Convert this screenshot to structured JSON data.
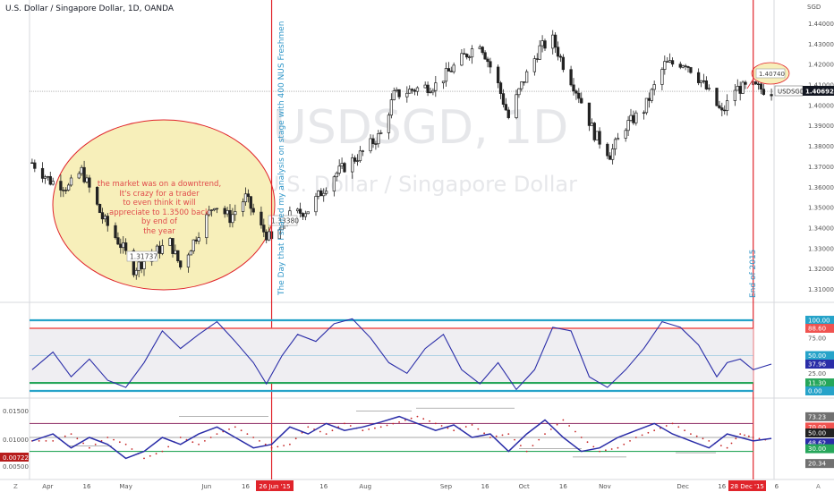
{
  "header": {
    "title": "U.S. Dollar / Singapore Dollar, 1D, OANDA"
  },
  "watermark": {
    "symbol": "USDSGD, 1D",
    "name": "U.S. Dollar / Singapore Dollar"
  },
  "currency_label": "SGD",
  "annotations": {
    "ellipse_text": [
      "the market was on a downtrend,",
      "It's crazy for a trader",
      "to even think it will",
      "appreciate to 1.3500 back",
      "by end of",
      "the year"
    ],
    "vertical_line_1_text": "The Day that I shared my analysis on stage with 400 NUS Freshmen",
    "vertical_line_2_text": "End of 2015",
    "low_label": "1.31737",
    "mid_label": "1.33380",
    "target_label": "1.40740"
  },
  "price_axis": {
    "ticks": [
      "1.44000",
      "1.43000",
      "1.42000",
      "1.41000",
      "1.40000",
      "1.39000",
      "1.38000",
      "1.37000",
      "1.36000",
      "1.35000",
      "1.34000",
      "1.33000",
      "1.32000",
      "1.31000"
    ],
    "symbol_tag": "USDSGD",
    "last_price": "1.40692"
  },
  "osc1_axis": {
    "labels": [
      "100.00",
      "88.60",
      "75.00",
      "50.00",
      "37.96",
      "25.00",
      "11.30",
      "0.00"
    ],
    "colors": [
      "#26a3c9",
      "#f05350",
      null,
      "#26a3c9",
      "#2a2da8",
      null,
      "#26a65a",
      "#26a3c9"
    ]
  },
  "osc2_axis": {
    "left_labels": [
      "0.01500",
      "0.01000",
      "0.00500"
    ],
    "left_badge": "0.00722",
    "right_labels": [
      "73.23",
      "70.00",
      "50.00",
      "48.62",
      "30.00",
      "20.34"
    ],
    "right_colors": [
      "#707070",
      "#f05350",
      "#222222",
      "#2a2da8",
      "#26a65a",
      "#707070"
    ]
  },
  "time_axis": {
    "labels": [
      "Apr",
      "16",
      "May",
      "Jun",
      "16",
      "16",
      "Aug",
      "Sep",
      "16",
      "Oct",
      "16",
      "Nov",
      "Dec",
      "16",
      "6"
    ],
    "badge_1": "26 Jun '15",
    "badge_2": "28 Dec '15",
    "corner_left": "Z",
    "corner_right": "A"
  },
  "colors": {
    "vline": "#e0242b",
    "ellipse_fill": "#f7efba",
    "ellipse_stroke": "#e0242b",
    "candle": "#222222",
    "osc_line": "#2a2da8",
    "band_top": "#26a3c9",
    "band_red": "#f05350",
    "band_green": "#26a65a"
  },
  "chart_data": [
    {
      "type": "candlestick",
      "title": "U.S. Dollar / Singapore Dollar, 1D, OANDA",
      "ylabel": "SGD",
      "ylim": [
        1.305,
        1.445
      ],
      "x_range": [
        "2015-03-25",
        "2016-01-05"
      ],
      "levels": {
        "low": 1.31737,
        "mid": 1.3338,
        "target": 1.4074,
        "last": 1.40692
      },
      "markers": [
        {
          "date": "2015-06-26",
          "label": "26 Jun '15"
        },
        {
          "date": "2015-12-28",
          "label": "28 Dec '15"
        }
      ],
      "close_waypoints": [
        {
          "date": "2015-03-26",
          "close": 1.372
        },
        {
          "date": "2015-04-02",
          "close": 1.363
        },
        {
          "date": "2015-04-09",
          "close": 1.36
        },
        {
          "date": "2015-04-14",
          "close": 1.368
        },
        {
          "date": "2015-04-22",
          "close": 1.345
        },
        {
          "date": "2015-04-30",
          "close": 1.33
        },
        {
          "date": "2015-05-04",
          "close": 1.32
        },
        {
          "date": "2015-05-12",
          "close": 1.328
        },
        {
          "date": "2015-05-18",
          "close": 1.333
        },
        {
          "date": "2015-05-22",
          "close": 1.321
        },
        {
          "date": "2015-05-28",
          "close": 1.336
        },
        {
          "date": "2015-06-04",
          "close": 1.352
        },
        {
          "date": "2015-06-10",
          "close": 1.345
        },
        {
          "date": "2015-06-16",
          "close": 1.355
        },
        {
          "date": "2015-06-22",
          "close": 1.34
        },
        {
          "date": "2015-06-26",
          "close": 1.3338
        },
        {
          "date": "2015-07-03",
          "close": 1.346
        },
        {
          "date": "2015-07-10",
          "close": 1.349
        },
        {
          "date": "2015-07-20",
          "close": 1.366
        },
        {
          "date": "2015-07-30",
          "close": 1.376
        },
        {
          "date": "2015-08-07",
          "close": 1.386
        },
        {
          "date": "2015-08-12",
          "close": 1.405
        },
        {
          "date": "2015-08-20",
          "close": 1.408
        },
        {
          "date": "2015-08-28",
          "close": 1.41
        },
        {
          "date": "2015-09-08",
          "close": 1.424
        },
        {
          "date": "2015-09-14",
          "close": 1.431
        },
        {
          "date": "2015-09-21",
          "close": 1.41
        },
        {
          "date": "2015-09-25",
          "close": 1.394
        },
        {
          "date": "2015-09-30",
          "close": 1.41
        },
        {
          "date": "2015-10-07",
          "close": 1.428
        },
        {
          "date": "2015-10-12",
          "close": 1.432
        },
        {
          "date": "2015-10-16",
          "close": 1.42
        },
        {
          "date": "2015-10-22",
          "close": 1.405
        },
        {
          "date": "2015-10-28",
          "close": 1.386
        },
        {
          "date": "2015-11-03",
          "close": 1.376
        },
        {
          "date": "2015-11-09",
          "close": 1.39
        },
        {
          "date": "2015-11-16",
          "close": 1.398
        },
        {
          "date": "2015-11-24",
          "close": 1.42
        },
        {
          "date": "2015-12-02",
          "close": 1.421
        },
        {
          "date": "2015-12-08",
          "close": 1.412
        },
        {
          "date": "2015-12-12",
          "close": 1.404
        },
        {
          "date": "2015-12-16",
          "close": 1.396
        },
        {
          "date": "2015-12-21",
          "close": 1.408
        },
        {
          "date": "2015-12-28",
          "close": 1.409
        },
        {
          "date": "2016-01-04",
          "close": 1.4069
        }
      ]
    },
    {
      "type": "line",
      "ylim": [
        0,
        100
      ],
      "levels": [
        100,
        88.6,
        50,
        11.3,
        0
      ],
      "last": 37.96,
      "points": [
        {
          "date": "2015-03-26",
          "value": 30
        },
        {
          "date": "2015-04-03",
          "value": 55
        },
        {
          "date": "2015-04-10",
          "value": 20
        },
        {
          "date": "2015-04-17",
          "value": 45
        },
        {
          "date": "2015-04-24",
          "value": 15
        },
        {
          "date": "2015-05-01",
          "value": 5
        },
        {
          "date": "2015-05-08",
          "value": 40
        },
        {
          "date": "2015-05-15",
          "value": 85
        },
        {
          "date": "2015-05-22",
          "value": 60
        },
        {
          "date": "2015-05-29",
          "value": 80
        },
        {
          "date": "2015-06-05",
          "value": 98
        },
        {
          "date": "2015-06-12",
          "value": 70
        },
        {
          "date": "2015-06-19",
          "value": 40
        },
        {
          "date": "2015-06-24",
          "value": 10
        },
        {
          "date": "2015-06-30",
          "value": 50
        },
        {
          "date": "2015-07-06",
          "value": 80
        },
        {
          "date": "2015-07-13",
          "value": 70
        },
        {
          "date": "2015-07-20",
          "value": 95
        },
        {
          "date": "2015-07-27",
          "value": 102
        },
        {
          "date": "2015-08-03",
          "value": 75
        },
        {
          "date": "2015-08-10",
          "value": 40
        },
        {
          "date": "2015-08-17",
          "value": 25
        },
        {
          "date": "2015-08-24",
          "value": 60
        },
        {
          "date": "2015-08-31",
          "value": 80
        },
        {
          "date": "2015-09-07",
          "value": 30
        },
        {
          "date": "2015-09-14",
          "value": 10
        },
        {
          "date": "2015-09-21",
          "value": 40
        },
        {
          "date": "2015-09-28",
          "value": 2
        },
        {
          "date": "2015-10-05",
          "value": 30
        },
        {
          "date": "2015-10-12",
          "value": 90
        },
        {
          "date": "2015-10-19",
          "value": 85
        },
        {
          "date": "2015-10-26",
          "value": 20
        },
        {
          "date": "2015-11-02",
          "value": 5
        },
        {
          "date": "2015-11-09",
          "value": 30
        },
        {
          "date": "2015-11-16",
          "value": 60
        },
        {
          "date": "2015-11-23",
          "value": 98
        },
        {
          "date": "2015-11-30",
          "value": 90
        },
        {
          "date": "2015-12-07",
          "value": 65
        },
        {
          "date": "2015-12-14",
          "value": 20
        },
        {
          "date": "2015-12-18",
          "value": 40
        },
        {
          "date": "2015-12-23",
          "value": 45
        },
        {
          "date": "2015-12-28",
          "value": 30
        },
        {
          "date": "2016-01-04",
          "value": 37.96
        }
      ]
    },
    {
      "type": "line",
      "ylim": [
        0,
        100
      ],
      "levels": [
        70,
        50,
        30
      ],
      "last_main": 48.62,
      "last_signal": 20.34,
      "points": [
        {
          "date": "2015-03-26",
          "value": 45
        },
        {
          "date": "2015-04-03",
          "value": 55
        },
        {
          "date": "2015-04-10",
          "value": 35
        },
        {
          "date": "2015-04-17",
          "value": 50
        },
        {
          "date": "2015-04-24",
          "value": 40
        },
        {
          "date": "2015-05-01",
          "value": 20
        },
        {
          "date": "2015-05-08",
          "value": 30
        },
        {
          "date": "2015-05-15",
          "value": 50
        },
        {
          "date": "2015-05-22",
          "value": 40
        },
        {
          "date": "2015-05-29",
          "value": 55
        },
        {
          "date": "2015-06-05",
          "value": 65
        },
        {
          "date": "2015-06-12",
          "value": 50
        },
        {
          "date": "2015-06-19",
          "value": 35
        },
        {
          "date": "2015-06-26",
          "value": 40
        },
        {
          "date": "2015-07-03",
          "value": 65
        },
        {
          "date": "2015-07-10",
          "value": 55
        },
        {
          "date": "2015-07-17",
          "value": 70
        },
        {
          "date": "2015-07-24",
          "value": 60
        },
        {
          "date": "2015-07-31",
          "value": 65
        },
        {
          "date": "2015-08-07",
          "value": 72
        },
        {
          "date": "2015-08-14",
          "value": 80
        },
        {
          "date": "2015-08-21",
          "value": 70
        },
        {
          "date": "2015-08-28",
          "value": 60
        },
        {
          "date": "2015-09-04",
          "value": 68
        },
        {
          "date": "2015-09-11",
          "value": 50
        },
        {
          "date": "2015-09-18",
          "value": 55
        },
        {
          "date": "2015-09-25",
          "value": 30
        },
        {
          "date": "2015-10-02",
          "value": 55
        },
        {
          "date": "2015-10-09",
          "value": 75
        },
        {
          "date": "2015-10-16",
          "value": 50
        },
        {
          "date": "2015-10-23",
          "value": 30
        },
        {
          "date": "2015-10-30",
          "value": 35
        },
        {
          "date": "2015-11-06",
          "value": 50
        },
        {
          "date": "2015-11-13",
          "value": 60
        },
        {
          "date": "2015-11-20",
          "value": 70
        },
        {
          "date": "2015-11-27",
          "value": 55
        },
        {
          "date": "2015-12-04",
          "value": 45
        },
        {
          "date": "2015-12-11",
          "value": 35
        },
        {
          "date": "2015-12-18",
          "value": 55
        },
        {
          "date": "2015-12-23",
          "value": 50
        },
        {
          "date": "2015-12-28",
          "value": 45
        },
        {
          "date": "2016-01-04",
          "value": 48.62
        }
      ]
    }
  ]
}
